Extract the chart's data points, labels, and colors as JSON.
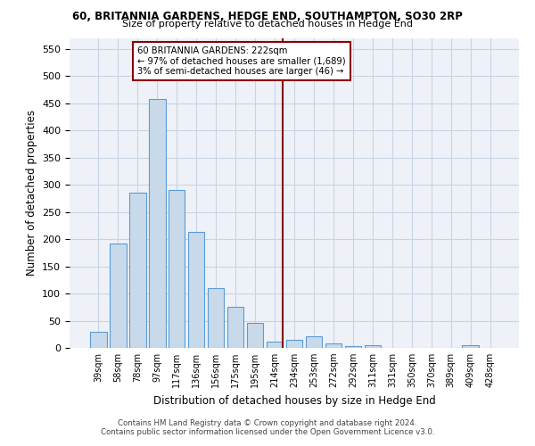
{
  "title": "60, BRITANNIA GARDENS, HEDGE END, SOUTHAMPTON, SO30 2RP",
  "subtitle": "Size of property relative to detached houses in Hedge End",
  "xlabel": "Distribution of detached houses by size in Hedge End",
  "ylabel": "Number of detached properties",
  "categories": [
    "39sqm",
    "58sqm",
    "78sqm",
    "97sqm",
    "117sqm",
    "136sqm",
    "156sqm",
    "175sqm",
    "195sqm",
    "214sqm",
    "234sqm",
    "253sqm",
    "272sqm",
    "292sqm",
    "311sqm",
    "331sqm",
    "350sqm",
    "370sqm",
    "389sqm",
    "409sqm",
    "428sqm"
  ],
  "values": [
    30,
    192,
    285,
    457,
    290,
    213,
    110,
    75,
    46,
    12,
    14,
    22,
    8,
    4,
    5,
    0,
    0,
    0,
    0,
    5,
    0
  ],
  "bar_color": "#c8daea",
  "bar_edge_color": "#5b9bd5",
  "vline_color": "#8b0000",
  "annotation_text": "60 BRITANNIA GARDENS: 222sqm\n← 97% of detached houses are smaller (1,689)\n3% of semi-detached houses are larger (46) →",
  "annotation_box_color": "#8b0000",
  "ylim": [
    0,
    570
  ],
  "yticks": [
    0,
    50,
    100,
    150,
    200,
    250,
    300,
    350,
    400,
    450,
    500,
    550
  ],
  "grid_color": "#c8d4e3",
  "background_color": "#eef2f8",
  "footer_line1": "Contains HM Land Registry data © Crown copyright and database right 2024.",
  "footer_line2": "Contains public sector information licensed under the Open Government Licence v3.0."
}
